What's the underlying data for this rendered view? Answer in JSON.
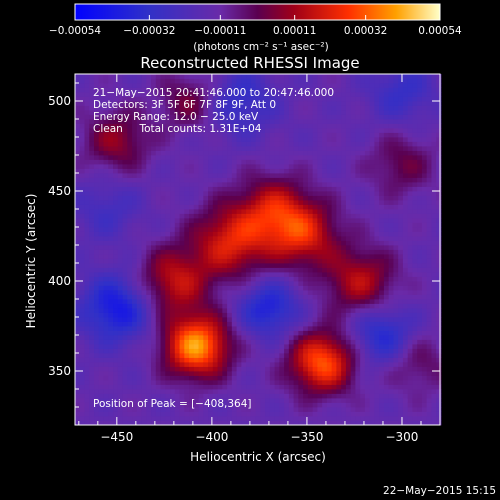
{
  "chart_data": {
    "type": "heatmap",
    "title": "Reconstructed RHESSI Image",
    "xlabel": "Heliocentric X (arcsec)",
    "ylabel": "Heliocentric Y (arcsec)",
    "xlim": [
      -472,
      -280
    ],
    "ylim": [
      320,
      515
    ],
    "x_ticks": [
      {
        "value": -450,
        "label": "−450"
      },
      {
        "value": -400,
        "label": "−400"
      },
      {
        "value": -350,
        "label": "−350"
      },
      {
        "value": -300,
        "label": "−300"
      }
    ],
    "y_ticks": [
      {
        "value": 350,
        "label": "350"
      },
      {
        "value": 400,
        "label": "400"
      },
      {
        "value": 450,
        "label": "450"
      },
      {
        "value": 500,
        "label": "500"
      }
    ],
    "colorbar": {
      "min": -0.00054,
      "max": 0.00054,
      "ticks": [
        {
          "value": -0.00054,
          "label": "−0.00054"
        },
        {
          "value": -0.00032,
          "label": "−0.00032"
        },
        {
          "value": -0.00011,
          "label": "−0.00011"
        },
        {
          "value": 0.00011,
          "label": "0.00011"
        },
        {
          "value": 0.00032,
          "label": "0.00032"
        },
        {
          "value": 0.00054,
          "label": "0.00054"
        }
      ],
      "unit_label": "(photons cm⁻² s⁻¹ asec⁻²)"
    },
    "annotations": [
      "21−May−2015 20:41:46.000 to 20:47:46.000",
      "Detectors: 3F 5F 6F 7F 8F 9F, Att 0",
      "Energy Range: 12.0 − 25.0 keV",
      "Clean     Total counts: 1.31E+04"
    ],
    "peak_label": "Position of Peak = [−408,364]",
    "sources": [
      {
        "x": -408,
        "y": 364,
        "amplitude": 0.00054,
        "sigma": 12
      },
      {
        "x": -342,
        "y": 355,
        "amplitude": 0.00045,
        "sigma": 12
      },
      {
        "x": -390,
        "y": 422,
        "amplitude": 0.00034,
        "sigma": 14
      },
      {
        "x": -352,
        "y": 426,
        "amplitude": 0.00033,
        "sigma": 13
      },
      {
        "x": -368,
        "y": 440,
        "amplitude": 0.00028,
        "sigma": 13
      },
      {
        "x": -420,
        "y": 400,
        "amplitude": 0.0003,
        "sigma": 13
      },
      {
        "x": -322,
        "y": 400,
        "amplitude": 0.00028,
        "sigma": 13
      },
      {
        "x": -450,
        "y": 478,
        "amplitude": 0.00022,
        "sigma": 12
      },
      {
        "x": -412,
        "y": 500,
        "amplitude": 0.00018,
        "sigma": 11
      },
      {
        "x": -300,
        "y": 465,
        "amplitude": 0.00016,
        "sigma": 12
      },
      {
        "x": -292,
        "y": 355,
        "amplitude": 0.00014,
        "sigma": 12
      },
      {
        "x": -450,
        "y": 385,
        "amplitude": -0.0003,
        "sigma": 13
      },
      {
        "x": -370,
        "y": 385,
        "amplitude": -0.00026,
        "sigma": 11
      },
      {
        "x": -310,
        "y": 370,
        "amplitude": -0.00024,
        "sigma": 12
      },
      {
        "x": -385,
        "y": 500,
        "amplitude": -0.00018,
        "sigma": 13
      },
      {
        "x": -300,
        "y": 505,
        "amplitude": -0.00016,
        "sigma": 12
      },
      {
        "x": -455,
        "y": 440,
        "amplitude": -0.00012,
        "sigma": 12
      }
    ]
  },
  "timestamp": "22−May−2015 15:15"
}
